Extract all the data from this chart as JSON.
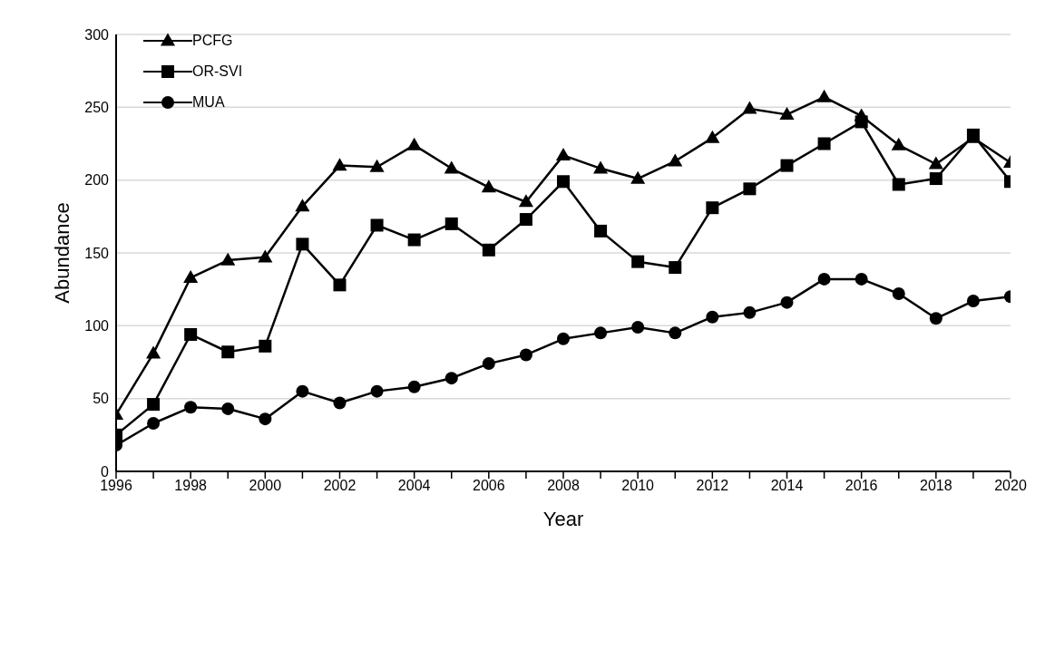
{
  "chart_data": {
    "type": "line",
    "xlabel": "Year",
    "ylabel": "Abundance",
    "x": [
      1996,
      1997,
      1998,
      1999,
      2000,
      2001,
      2002,
      2003,
      2004,
      2005,
      2006,
      2007,
      2008,
      2009,
      2010,
      2011,
      2012,
      2013,
      2014,
      2015,
      2016,
      2017,
      2018,
      2019,
      2020
    ],
    "series": [
      {
        "name": "PCFG",
        "color": "#000000",
        "marker": "triangle",
        "values": [
          39,
          81,
          133,
          145,
          147,
          182,
          210,
          209,
          224,
          208,
          195,
          185,
          217,
          208,
          201,
          213,
          229,
          249,
          245,
          257,
          244,
          224,
          211,
          229,
          212
        ]
      },
      {
        "name": "OR-SVI",
        "color": "#000000",
        "marker": "square",
        "values": [
          25,
          46,
          94,
          82,
          86,
          156,
          128,
          169,
          159,
          170,
          152,
          173,
          199,
          165,
          144,
          140,
          181,
          194,
          210,
          225,
          240,
          197,
          201,
          231,
          199
        ]
      },
      {
        "name": "MUA",
        "color": "#000000",
        "marker": "circle",
        "values": [
          18,
          33,
          44,
          43,
          36,
          55,
          47,
          55,
          58,
          64,
          74,
          80,
          91,
          95,
          99,
          95,
          106,
          109,
          116,
          132,
          132,
          122,
          105,
          117,
          120
        ]
      }
    ],
    "xlim": [
      1996,
      2020
    ],
    "xticks": [
      1996,
      {
        "value": 1997,
        "label": null
      },
      1998,
      {
        "value": 1999,
        "label": null
      },
      2000,
      {
        "value": 2001,
        "label": null
      },
      2002,
      {
        "value": 2003,
        "label": null
      },
      2004,
      {
        "value": 2005,
        "label": null
      },
      2006,
      {
        "value": 2007,
        "label": null
      },
      2008,
      {
        "value": 2009,
        "label": null
      },
      2010,
      {
        "value": 2011,
        "label": null
      },
      2012,
      {
        "value": 2013,
        "label": null
      },
      2014,
      {
        "value": 2015,
        "label": null
      },
      2016,
      {
        "value": 2017,
        "label": null
      },
      2018,
      {
        "value": 2019,
        "label": null
      },
      2020
    ],
    "ylim": [
      0,
      300
    ],
    "yticks": [
      0,
      50,
      100,
      150,
      200,
      250,
      300
    ],
    "grid": "y",
    "legend": "top left",
    "line_style": "solid"
  }
}
